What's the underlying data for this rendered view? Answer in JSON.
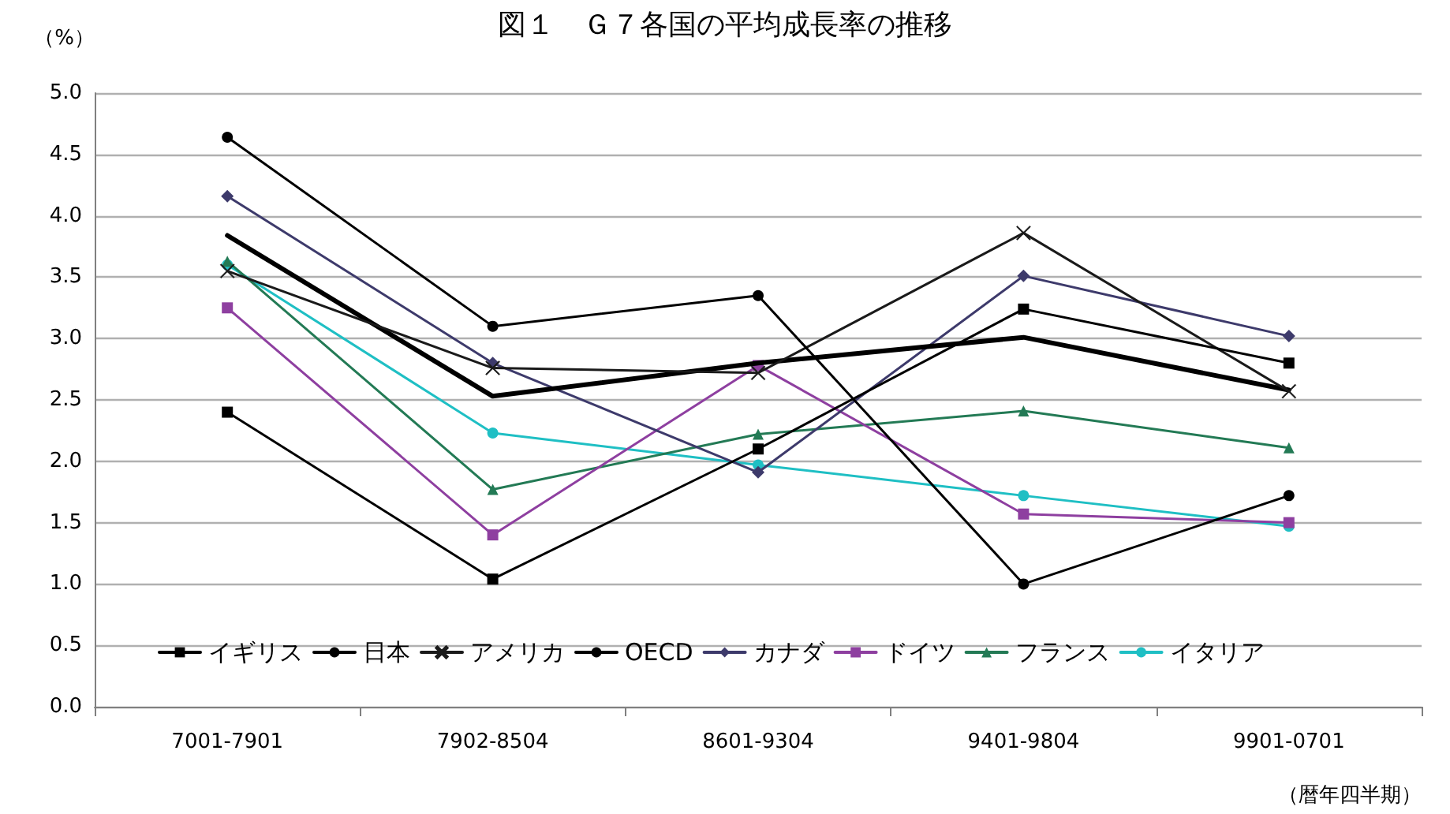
{
  "chart_data": {
    "type": "line",
    "title": "図１　Ｇ７各国の平均成長率の推移",
    "ylabel": "（%）",
    "xlabel": "（暦年四半期）",
    "categories": [
      "7001-7901",
      "7902-8504",
      "8601-9304",
      "9401-9804",
      "9901-0701"
    ],
    "series": [
      {
        "name": "イギリス",
        "color": "#000000",
        "marker": "square",
        "values": [
          2.4,
          1.04,
          2.1,
          3.24,
          2.8
        ]
      },
      {
        "name": "日本",
        "color": "#000000",
        "marker": "circle",
        "values": [
          4.64,
          3.1,
          3.35,
          1.0,
          1.72
        ]
      },
      {
        "name": "アメリカ",
        "color": "#1a1a1a",
        "marker": "cross",
        "values": [
          3.55,
          2.76,
          2.72,
          3.86,
          2.57
        ]
      },
      {
        "name": "OECD",
        "color": "#000000",
        "marker": "none",
        "values": [
          3.84,
          2.53,
          2.8,
          3.01,
          2.58
        ]
      },
      {
        "name": "カナダ",
        "color": "#3d3a6b",
        "marker": "diamond",
        "values": [
          4.16,
          2.8,
          1.91,
          3.51,
          3.02
        ]
      },
      {
        "name": "ドイツ",
        "color": "#8e3fa0",
        "marker": "square",
        "values": [
          3.25,
          1.4,
          2.78,
          1.57,
          1.5
        ]
      },
      {
        "name": "フランス",
        "color": "#237a55",
        "marker": "triangle",
        "values": [
          3.63,
          1.77,
          2.22,
          2.41,
          2.11
        ]
      },
      {
        "name": "イタリア",
        "color": "#1fbfc4",
        "marker": "circle",
        "values": [
          3.6,
          2.23,
          1.97,
          1.72,
          1.47
        ]
      }
    ],
    "ylim": [
      0,
      5
    ],
    "yticks": [
      {
        "value": 0,
        "label": "0.0"
      },
      {
        "value": 0.5,
        "label": "0.5"
      },
      {
        "value": 1,
        "label": "1.0"
      },
      {
        "value": 1.5,
        "label": "1.5"
      },
      {
        "value": 2,
        "label": "2.0"
      },
      {
        "value": 2.5,
        "label": "2.5"
      },
      {
        "value": 3,
        "label": "3.0"
      },
      {
        "value": 3.5,
        "label": "3.5"
      },
      {
        "value": 4,
        "label": "4.0"
      },
      {
        "value": 4.5,
        "label": "4.5"
      },
      {
        "value": 5,
        "label": "5.0"
      }
    ],
    "grid": "y",
    "legend": "bottom"
  }
}
